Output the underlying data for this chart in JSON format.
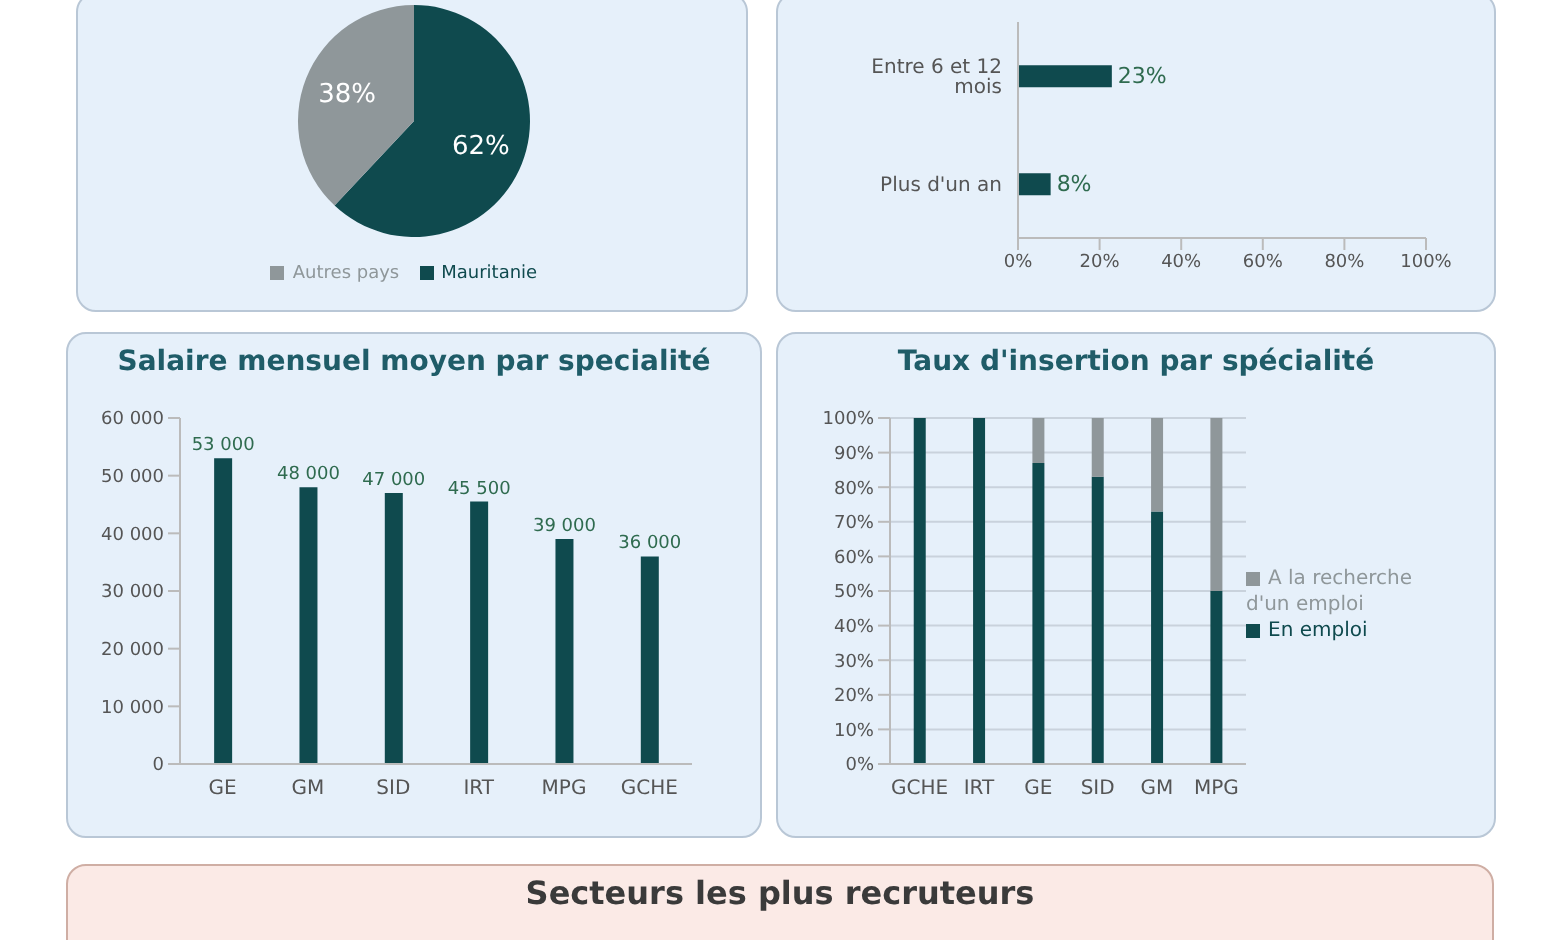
{
  "chart_data": [
    {
      "type": "pie",
      "categories": [
        "Mauritanie",
        "Autres pays"
      ],
      "values": [
        62,
        38
      ],
      "colors": [
        "#0f4a4e",
        "#8f979a"
      ],
      "value_labels": [
        "62%",
        "38%"
      ],
      "legend": "bottom"
    },
    {
      "type": "bar",
      "orientation": "horizontal",
      "categories": [
        "Entre 6 et 12 mois",
        "Plus d'un an"
      ],
      "values": [
        23,
        8
      ],
      "color": "#0f4a4e",
      "value_labels": [
        "23%",
        "8%"
      ],
      "xlim": [
        0,
        100
      ],
      "xticks": [
        {
          "value": 0,
          "label": "0%"
        },
        {
          "value": 20,
          "label": "20%"
        },
        {
          "value": 40,
          "label": "40%"
        },
        {
          "value": 60,
          "label": "60%"
        },
        {
          "value": 80,
          "label": "80%"
        },
        {
          "value": 100,
          "label": "100%"
        }
      ]
    },
    {
      "type": "bar",
      "title": "Salaire mensuel moyen par specialité",
      "categories": [
        "GE",
        "GM",
        "SID",
        "IRT",
        "MPG",
        "GCHE"
      ],
      "values": [
        53000,
        48000,
        47000,
        45500,
        39000,
        36000
      ],
      "color": "#0f4a4e",
      "value_labels": [
        "53 000",
        "48 000",
        "47 000",
        "45 500",
        "39 000",
        "36 000"
      ],
      "ylim": [
        0,
        60000
      ],
      "yticks": [
        {
          "value": 0,
          "label": "0"
        },
        {
          "value": 10000,
          "label": "10 000"
        },
        {
          "value": 20000,
          "label": "20 000"
        },
        {
          "value": 30000,
          "label": "30 000"
        },
        {
          "value": 40000,
          "label": "40 000"
        },
        {
          "value": 50000,
          "label": "50 000"
        },
        {
          "value": 60000,
          "label": "60 000"
        }
      ]
    },
    {
      "type": "bar",
      "title": "Taux d'insertion par spécialité",
      "stacked": true,
      "categories": [
        "GCHE",
        "IRT",
        "GE",
        "SID",
        "GM",
        "MPG"
      ],
      "series": [
        {
          "name": "En emploi",
          "color": "#0f4a4e",
          "values": [
            100,
            100,
            87,
            83,
            73,
            50
          ]
        },
        {
          "name": "A la recherche d'un emploi",
          "color": "#8f979a",
          "values": [
            0,
            0,
            13,
            17,
            27,
            50
          ]
        }
      ],
      "ylim": [
        0,
        100
      ],
      "yticks": [
        {
          "value": 0,
          "label": "0%"
        },
        {
          "value": 10,
          "label": "10%"
        },
        {
          "value": 20,
          "label": "20%"
        },
        {
          "value": 30,
          "label": "30%"
        },
        {
          "value": 40,
          "label": "40%"
        },
        {
          "value": 50,
          "label": "50%"
        },
        {
          "value": 60,
          "label": "60%"
        },
        {
          "value": 70,
          "label": "70%"
        },
        {
          "value": 80,
          "label": "80%"
        },
        {
          "value": 90,
          "label": "90%"
        },
        {
          "value": 100,
          "label": "100%"
        }
      ],
      "grid": "y",
      "legend": "right"
    },
    {
      "type": "other",
      "title": "Secteurs les plus recruteurs"
    }
  ]
}
